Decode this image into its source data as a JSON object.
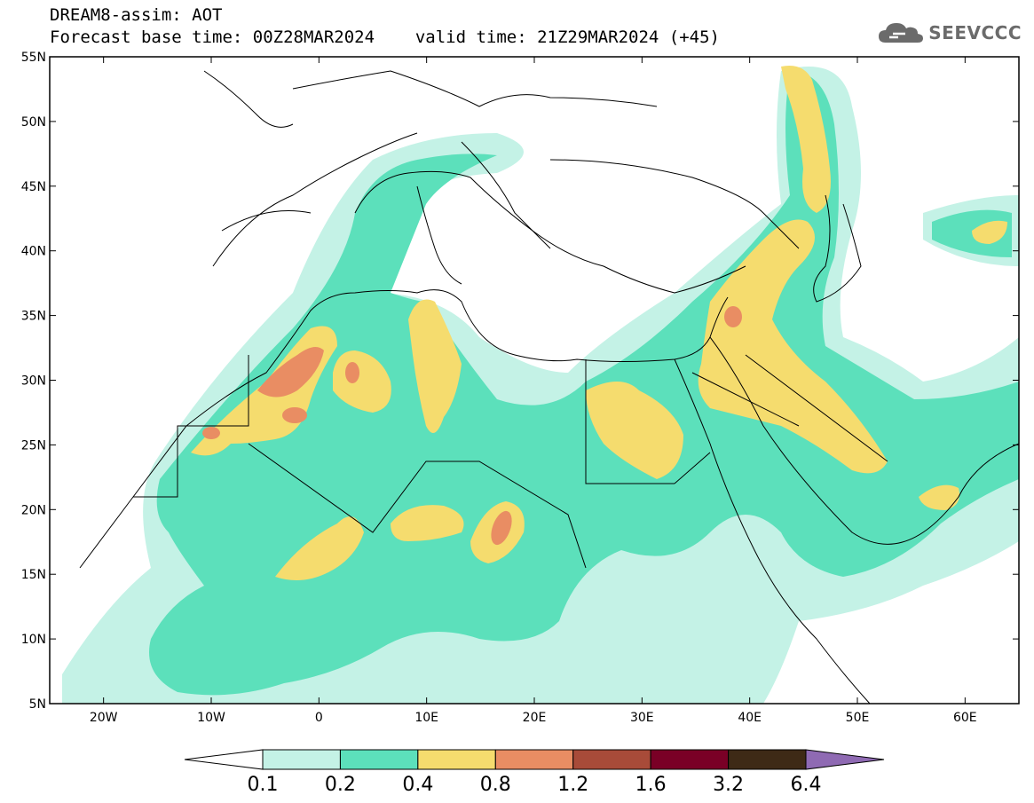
{
  "header": {
    "title": "DREAM8-assim: AOT",
    "forecast_label": "Forecast base time: 00Z28MAR2024",
    "valid_label": "valid time: 21Z29MAR2024 (+45)"
  },
  "logo": {
    "text": "SEEVCCC",
    "icon": "cloud-icon"
  },
  "map": {
    "lat_ticks": [
      "55N",
      "50N",
      "45N",
      "40N",
      "35N",
      "30N",
      "25N",
      "20N",
      "15N",
      "10N",
      "5N"
    ],
    "lon_ticks": [
      "20W",
      "10W",
      "0",
      "10E",
      "20E",
      "30E",
      "40E",
      "50E",
      "60E"
    ],
    "lat_range": [
      5,
      55
    ],
    "lon_range": [
      -25,
      65
    ]
  },
  "colorbar": {
    "labels": [
      "0.1",
      "0.2",
      "0.4",
      "0.8",
      "1.2",
      "1.6",
      "3.2",
      "6.4"
    ],
    "colors": [
      "#ffffff",
      "#c4f2e6",
      "#5ce0bb",
      "#f5dc6e",
      "#e98d63",
      "#a84b39",
      "#7a0026",
      "#3e2a16",
      "#8f6ab3"
    ]
  }
}
